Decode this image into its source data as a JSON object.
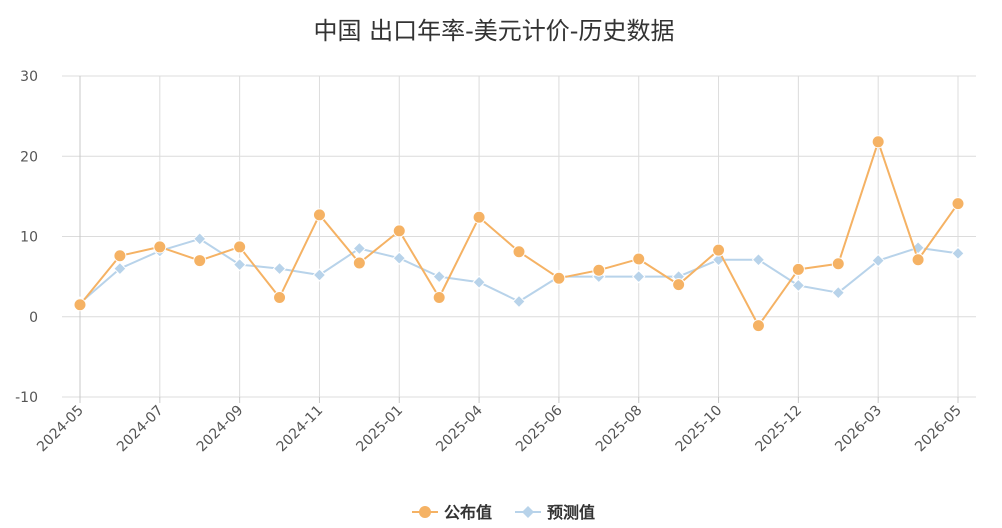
{
  "chart_data": {
    "type": "line",
    "title": "中国 出口年率-美元计价-历史数据",
    "xlabel": "",
    "ylabel": "",
    "ylim": [
      -10,
      30
    ],
    "yticks": [
      -10,
      0,
      10,
      20,
      30
    ],
    "x": [
      "2024-05",
      "2024-06",
      "2024-07",
      "2024-08",
      "2024-09",
      "2024-10",
      "2024-11",
      "2024-12",
      "2025-01",
      "2025-03",
      "2025-04",
      "2025-05",
      "2025-06",
      "2025-07",
      "2025-08",
      "2025-09",
      "2025-10",
      "2025-11",
      "2025-12",
      "2026-01",
      "2026-03",
      "2026-04",
      "2026-05"
    ],
    "xtick_labels": [
      "2024-05",
      "2024-07",
      "2024-09",
      "2024-11",
      "2025-01",
      "2025-04",
      "2025-06",
      "2025-08",
      "2025-10",
      "2025-12",
      "2026-03",
      "2026-05"
    ],
    "grid": true,
    "legend_position": "bottom-center",
    "series": [
      {
        "name": "公布值",
        "color": "#f5b264",
        "marker": "circle",
        "values": [
          1.5,
          7.6,
          8.7,
          7.0,
          8.7,
          2.4,
          12.7,
          6.7,
          10.7,
          2.4,
          12.4,
          8.1,
          4.8,
          5.8,
          7.2,
          4.0,
          8.3,
          -1.1,
          5.9,
          6.6,
          21.8,
          7.1,
          14.1
        ]
      },
      {
        "name": "预测值",
        "color": "#b8d3ea",
        "marker": "diamond",
        "values": [
          1.7,
          6.0,
          8.2,
          9.7,
          6.5,
          6.0,
          5.2,
          8.5,
          7.3,
          5.0,
          4.3,
          1.9,
          5.0,
          5.0,
          5.0,
          5.0,
          7.1,
          7.1,
          3.9,
          3.0,
          7.0,
          8.6,
          7.9
        ]
      }
    ]
  }
}
